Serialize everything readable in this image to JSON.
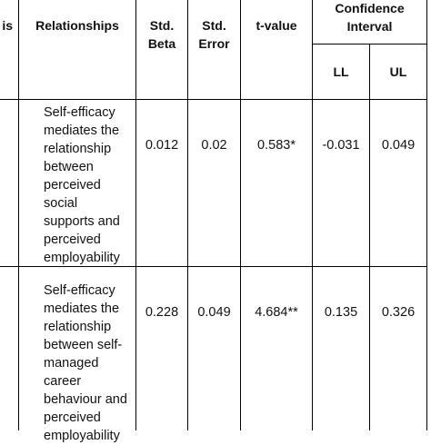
{
  "header": {
    "hypothesis_fragment": "is",
    "relationships": "Relationships",
    "std_beta": "Std.\nBeta",
    "std_error": "Std.\nError",
    "t_value": "t-value",
    "confidence_interval": "Confidence\nInterval",
    "ll": "LL",
    "ul": "UL"
  },
  "rows": [
    {
      "relationship": "Self-efficacy\nmediates the\nrelationship\nbetween\nperceived social\nsupports and\nperceived\nemployability",
      "std_beta": "0.012",
      "std_error": "0.02",
      "t_value": "0.583*",
      "ll": "-0.031",
      "ul": "0.049"
    },
    {
      "relationship": "Self-efficacy\nmediates the\nrelationship\nbetween self-\nmanaged career\nbehaviour and\nperceived\nemployability",
      "std_beta": "0.228",
      "std_error": "0.049",
      "t_value": "4.684**",
      "ll": "0.135",
      "ul": "0.326"
    }
  ]
}
